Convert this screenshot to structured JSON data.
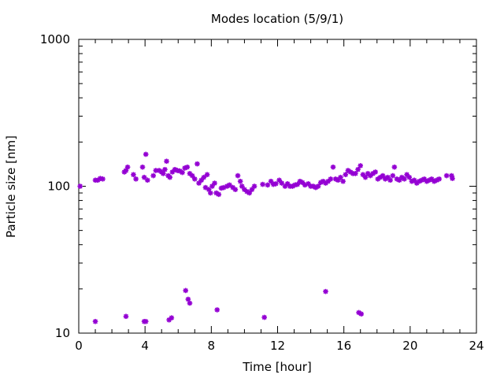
{
  "chart_data": {
    "type": "scatter",
    "title": "Modes location (5/9/1)",
    "xlabel": "Time [hour]",
    "ylabel": "Particle size [nm]",
    "xlim": [
      0,
      24
    ],
    "ylim": [
      10,
      1000
    ],
    "yscale": "log",
    "xticks": [
      "0",
      "4",
      "8",
      "12",
      "16",
      "20",
      "24"
    ],
    "yticks": [
      "10",
      "100",
      "1000"
    ],
    "grid": false,
    "legend": "none",
    "marker_color": "#9400d3",
    "series": [
      {
        "points": [
          [
            0.08,
            100
          ],
          [
            1.0,
            110
          ],
          [
            1.15,
            110
          ],
          [
            1.3,
            113
          ],
          [
            1.45,
            112
          ],
          [
            2.75,
            125
          ],
          [
            2.85,
            128
          ],
          [
            2.95,
            135
          ],
          [
            3.3,
            120
          ],
          [
            3.45,
            112
          ],
          [
            3.85,
            135
          ],
          [
            3.95,
            115
          ],
          [
            4.05,
            165
          ],
          [
            4.15,
            110
          ],
          [
            4.5,
            118
          ],
          [
            4.65,
            128
          ],
          [
            4.85,
            128
          ],
          [
            5.0,
            125
          ],
          [
            5.1,
            122
          ],
          [
            5.2,
            130
          ],
          [
            5.3,
            148
          ],
          [
            5.4,
            118
          ],
          [
            5.5,
            115
          ],
          [
            5.65,
            125
          ],
          [
            5.8,
            130
          ],
          [
            5.95,
            128
          ],
          [
            6.1,
            127
          ],
          [
            6.25,
            124
          ],
          [
            6.4,
            133
          ],
          [
            6.55,
            135
          ],
          [
            6.7,
            122
          ],
          [
            6.85,
            118
          ],
          [
            7.0,
            112
          ],
          [
            7.15,
            142
          ],
          [
            7.25,
            105
          ],
          [
            7.4,
            110
          ],
          [
            7.55,
            115
          ],
          [
            7.65,
            98
          ],
          [
            7.75,
            120
          ],
          [
            7.85,
            95
          ],
          [
            7.95,
            90
          ],
          [
            8.05,
            100
          ],
          [
            8.2,
            105
          ],
          [
            8.3,
            90
          ],
          [
            8.45,
            88
          ],
          [
            8.6,
            97
          ],
          [
            8.75,
            98
          ],
          [
            8.95,
            100
          ],
          [
            9.1,
            102
          ],
          [
            9.3,
            98
          ],
          [
            9.45,
            95
          ],
          [
            9.6,
            118
          ],
          [
            9.75,
            108
          ],
          [
            9.85,
            100
          ],
          [
            10.0,
            95
          ],
          [
            10.15,
            92
          ],
          [
            10.3,
            90
          ],
          [
            10.45,
            95
          ],
          [
            10.6,
            100
          ],
          [
            11.1,
            103
          ],
          [
            11.4,
            102
          ],
          [
            11.6,
            108
          ],
          [
            11.75,
            103
          ],
          [
            11.9,
            104
          ],
          [
            12.1,
            110
          ],
          [
            12.25,
            105
          ],
          [
            12.45,
            100
          ],
          [
            12.6,
            104
          ],
          [
            12.75,
            100
          ],
          [
            12.9,
            100
          ],
          [
            13.05,
            102
          ],
          [
            13.2,
            103
          ],
          [
            13.35,
            108
          ],
          [
            13.5,
            106
          ],
          [
            13.65,
            102
          ],
          [
            13.85,
            104
          ],
          [
            14.0,
            100
          ],
          [
            14.15,
            100
          ],
          [
            14.3,
            98
          ],
          [
            14.45,
            100
          ],
          [
            14.6,
            106
          ],
          [
            14.75,
            108
          ],
          [
            14.9,
            105
          ],
          [
            15.05,
            108
          ],
          [
            15.2,
            112
          ],
          [
            15.35,
            135
          ],
          [
            15.5,
            112
          ],
          [
            15.65,
            110
          ],
          [
            15.8,
            115
          ],
          [
            15.95,
            108
          ],
          [
            16.1,
            120
          ],
          [
            16.25,
            128
          ],
          [
            16.4,
            125
          ],
          [
            16.55,
            122
          ],
          [
            16.7,
            122
          ],
          [
            16.85,
            130
          ],
          [
            17.0,
            138
          ],
          [
            17.15,
            120
          ],
          [
            17.3,
            115
          ],
          [
            17.45,
            122
          ],
          [
            17.6,
            118
          ],
          [
            17.75,
            122
          ],
          [
            17.9,
            125
          ],
          [
            18.05,
            112
          ],
          [
            18.2,
            115
          ],
          [
            18.35,
            118
          ],
          [
            18.5,
            112
          ],
          [
            18.65,
            115
          ],
          [
            18.8,
            110
          ],
          [
            18.95,
            118
          ],
          [
            19.05,
            135
          ],
          [
            19.2,
            112
          ],
          [
            19.35,
            110
          ],
          [
            19.5,
            115
          ],
          [
            19.65,
            112
          ],
          [
            19.8,
            120
          ],
          [
            19.95,
            115
          ],
          [
            20.1,
            108
          ],
          [
            20.25,
            110
          ],
          [
            20.4,
            105
          ],
          [
            20.55,
            108
          ],
          [
            20.7,
            110
          ],
          [
            20.85,
            112
          ],
          [
            21.0,
            108
          ],
          [
            21.15,
            110
          ],
          [
            21.3,
            112
          ],
          [
            21.45,
            108
          ],
          [
            21.6,
            110
          ],
          [
            21.75,
            112
          ],
          [
            22.2,
            118
          ],
          [
            22.5,
            118
          ],
          [
            22.55,
            113
          ],
          [
            1.0,
            12
          ],
          [
            2.85,
            13
          ],
          [
            3.95,
            12
          ],
          [
            4.05,
            12
          ],
          [
            5.45,
            12.3
          ],
          [
            5.6,
            12.7
          ],
          [
            6.45,
            19.5
          ],
          [
            6.6,
            17
          ],
          [
            6.7,
            16
          ],
          [
            8.35,
            14.4
          ],
          [
            11.2,
            12.8
          ],
          [
            14.9,
            19.2
          ],
          [
            16.9,
            13.8
          ],
          [
            17.05,
            13.5
          ]
        ]
      }
    ]
  }
}
